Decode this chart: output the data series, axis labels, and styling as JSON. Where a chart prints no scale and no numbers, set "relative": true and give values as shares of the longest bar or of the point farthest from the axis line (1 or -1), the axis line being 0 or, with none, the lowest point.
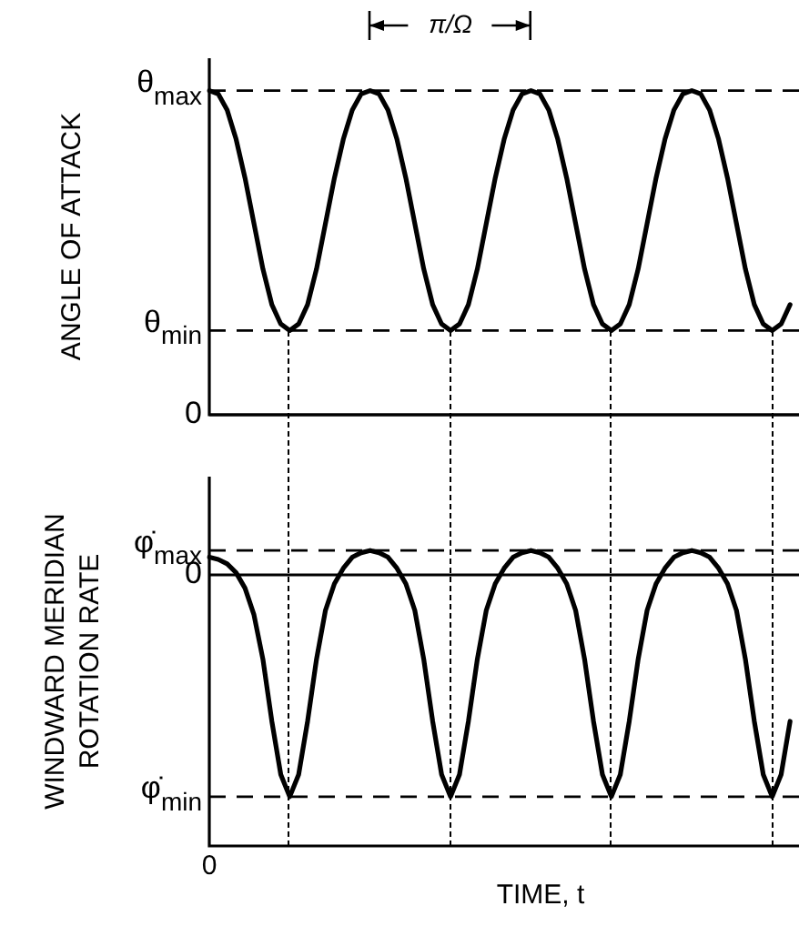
{
  "chart_data": [
    {
      "type": "line",
      "relative": true,
      "ylabel": "ANGLE OF ATTACK",
      "grid": "x",
      "tick_labels": false,
      "marker": "none",
      "line_style": "solid",
      "legend": false,
      "categories": [
        null,
        null,
        null,
        null,
        null,
        null,
        null,
        null,
        null,
        null,
        null,
        null,
        null,
        null,
        null,
        null,
        null,
        null,
        null,
        null,
        null,
        null,
        null,
        null,
        null,
        null,
        null,
        null,
        null,
        null,
        null,
        null,
        null,
        null,
        null,
        null,
        null,
        null,
        null,
        null,
        null,
        null,
        null,
        null,
        null,
        null,
        null,
        null,
        null,
        null,
        null,
        null,
        null,
        null,
        null,
        null,
        null,
        null,
        null,
        null,
        null,
        null,
        null,
        null,
        null,
        null,
        null
      ],
      "series": [
        {
          "color": "#000000",
          "values": [
            1,
            0.99,
            0.94,
            0.85,
            0.73,
            0.59,
            0.45,
            0.34,
            0.28,
            0.26,
            0.28,
            0.34,
            0.45,
            0.59,
            0.73,
            0.85,
            0.94,
            0.99,
            1,
            0.99,
            0.94,
            0.85,
            0.73,
            0.59,
            0.45,
            0.34,
            0.28,
            0.26,
            0.28,
            0.34,
            0.45,
            0.59,
            0.73,
            0.85,
            0.94,
            0.99,
            1,
            0.99,
            0.94,
            0.85,
            0.73,
            0.59,
            0.45,
            0.34,
            0.28,
            0.26,
            0.28,
            0.34,
            0.45,
            0.59,
            0.73,
            0.85,
            0.94,
            0.99,
            1,
            0.99,
            0.94,
            0.85,
            0.73,
            0.59,
            0.45,
            0.34,
            0.28,
            0.26,
            0.28,
            0.34,
            null
          ]
        }
      ],
      "ref_lines": [
        {
          "axis": "y",
          "value": 1,
          "label": "θ$_{max}$",
          "line_style": "dashed"
        },
        {
          "axis": "y",
          "value": 0.26,
          "label": "θ$_{min}$",
          "line_style": "dashed"
        },
        {
          "axis": "y",
          "value": 0,
          "label": "0",
          "line_style": "solid"
        }
      ],
      "annotations": [
        "π/Ω"
      ]
    },
    {
      "type": "line",
      "relative": true,
      "ylabel": "WINDWARD MERIDIAN ROTATION RATE",
      "xlabel": "TIME, t",
      "grid": "x",
      "tick_labels": false,
      "marker": "none",
      "line_style": "solid",
      "legend": false,
      "categories": [
        null,
        null,
        null,
        null,
        null,
        null,
        null,
        null,
        null,
        null,
        null,
        null,
        null,
        null,
        null,
        null,
        null,
        null,
        null,
        null,
        null,
        null,
        null,
        null,
        null,
        null,
        null,
        null,
        null,
        null,
        null,
        null,
        null,
        null,
        null,
        null,
        null,
        null,
        null,
        null,
        null,
        null,
        null,
        null,
        null,
        null,
        null,
        null,
        null,
        null,
        null,
        null,
        null,
        null,
        null,
        null,
        null,
        null,
        null,
        null,
        null,
        null,
        null,
        null,
        null,
        null,
        null
      ],
      "series": [
        {
          "color": "#000000",
          "values": [
            0.08,
            0.07,
            0.05,
            0.01,
            -0.06,
            -0.18,
            -0.38,
            -0.66,
            -0.9,
            -1,
            -0.9,
            -0.66,
            -0.38,
            -0.16,
            -0.04,
            0.03,
            0.08,
            0.1,
            0.11,
            0.1,
            0.08,
            0.03,
            -0.04,
            -0.16,
            -0.38,
            -0.66,
            -0.9,
            -1,
            -0.9,
            -0.66,
            -0.38,
            -0.16,
            -0.04,
            0.03,
            0.08,
            0.1,
            0.11,
            0.1,
            0.08,
            0.03,
            -0.04,
            -0.16,
            -0.38,
            -0.66,
            -0.9,
            -1,
            -0.9,
            -0.66,
            -0.38,
            -0.16,
            -0.04,
            0.03,
            0.08,
            0.1,
            0.11,
            0.1,
            0.08,
            0.03,
            -0.04,
            -0.16,
            -0.38,
            -0.66,
            -0.9,
            -1,
            -0.9,
            -0.66,
            null
          ]
        }
      ],
      "ref_lines": [
        {
          "axis": "y",
          "value": 0.11,
          "label": "φ̇$_{max}$",
          "line_style": "dashed"
        },
        {
          "axis": "y",
          "value": 0,
          "label": "0",
          "line_style": "solid"
        },
        {
          "axis": "y",
          "value": -1,
          "label": "φ̇$_{min}$",
          "line_style": "dashed"
        }
      ],
      "annotations": [
        "0"
      ]
    }
  ]
}
